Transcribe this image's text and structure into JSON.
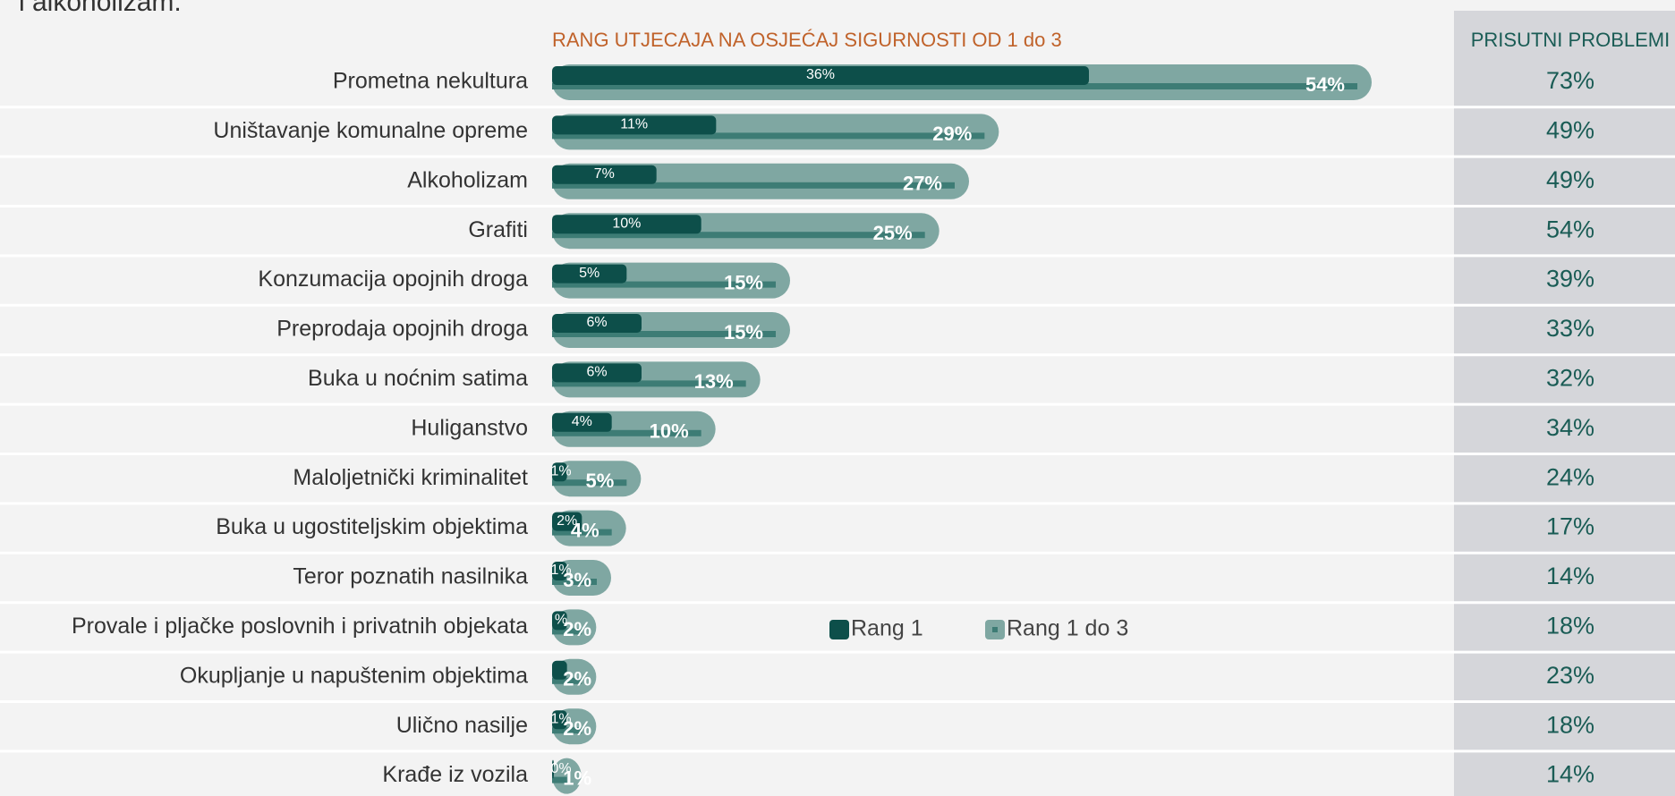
{
  "chart_data": {
    "type": "bar",
    "orientation": "horizontal",
    "note": "i alkoholizam.",
    "title": "RANG UTJECAJA NA OSJEĆAJ SIGURNOSTI OD 1 do 3",
    "categories": [
      "Prometna nekultura",
      "Uništavanje komunalne opreme",
      "Alkoholizam",
      "Grafiti",
      "Konzumacija opojnih droga",
      "Preprodaja opojnih droga",
      "Buka u noćnim satima",
      "Huliganstvo",
      "Maloljetnički kriminalitet",
      "Buka u ugostiteljskim objektima",
      "Teror poznatih nasilnika",
      "Provale i pljačke poslovnih i privatnih objekata",
      "Okupljanje u napuštenim objektima",
      "Ulično nasilje",
      "Krađe iz vozila"
    ],
    "series": [
      {
        "name": "Rang 1",
        "color": "#0d4f4a",
        "values": [
          36,
          11,
          7,
          10,
          5,
          6,
          6,
          4,
          1,
          2,
          1,
          1,
          1,
          1,
          0
        ],
        "value_labels": [
          "36%",
          "11%",
          "7%",
          "10%",
          "5%",
          "6%",
          "6%",
          "4%",
          "1%",
          "2%",
          "1%",
          "%",
          null,
          "1%",
          "0%"
        ]
      },
      {
        "name": "Rang 1 do 3",
        "color": "#7fa7a2",
        "values": [
          54,
          29,
          27,
          25,
          15,
          15,
          13,
          10,
          5,
          4,
          3,
          2,
          2,
          2,
          1
        ],
        "value_labels": [
          "54%",
          "29%",
          "27%",
          "25%",
          "15%",
          "15%",
          "13%",
          "10%",
          "5%",
          "4%",
          "3%",
          "2%",
          "2%",
          "2%",
          "1%"
        ]
      }
    ],
    "xlim": [
      0,
      60
    ],
    "legend": "center",
    "table": {
      "header": "PRISUTNI PROBLEMI",
      "values": [
        "73%",
        "49%",
        "49%",
        "54%",
        "39%",
        "33%",
        "32%",
        "34%",
        "24%",
        "17%",
        "14%",
        "18%",
        "23%",
        "18%",
        "14%"
      ]
    }
  }
}
